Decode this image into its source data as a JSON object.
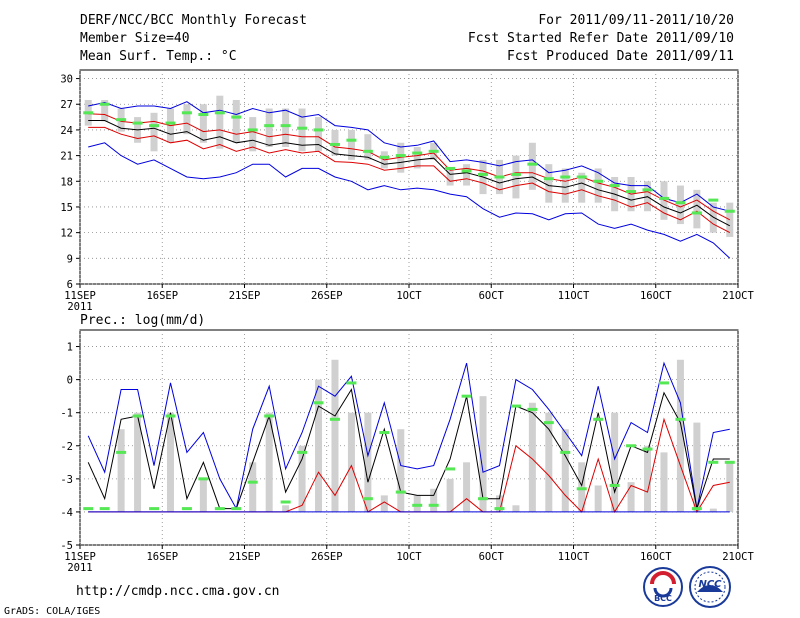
{
  "header": {
    "title": "DERF/NCC/BCC Monthly Forecast",
    "member_size": "Member Size=40",
    "variable": "Mean Surf. Temp.: °C",
    "period": "For 2011/09/11-2011/10/20",
    "started": "Fcst Started Refer Date 2011/09/10",
    "produced": "Fcst Produced Date 2011/09/11"
  },
  "footer": {
    "url": "http://cmdp.ncc.cma.gov.cn",
    "credit": "GrADS: COLA/IGES",
    "logo_bcc": "BCC",
    "logo_ncc": "NCC"
  },
  "colors": {
    "bar": "#d0d0d0",
    "green": "#55e855",
    "blue": "#0000dd",
    "red": "#dd0000",
    "black": "#000000",
    "grid": "#888888"
  },
  "chart_data": [
    {
      "type": "line",
      "title": "Mean Surf. Temp.: °C",
      "ylim": [
        6,
        31
      ],
      "yticks": [
        6,
        9,
        12,
        15,
        18,
        21,
        24,
        27,
        30
      ],
      "x_start": "2011-09-11",
      "x_end": "2011-10-21",
      "xticks": [
        {
          "day": 0,
          "label": "11SEP",
          "sub": "2011"
        },
        {
          "day": 5,
          "label": "16SEP"
        },
        {
          "day": 10,
          "label": "21SEP"
        },
        {
          "day": 15,
          "label": "26SEP"
        },
        {
          "day": 20,
          "label": "1OCT"
        },
        {
          "day": 25,
          "label": "6OCT"
        },
        {
          "day": 30,
          "label": "11OCT"
        },
        {
          "day": 35,
          "label": "16OCT"
        },
        {
          "day": 40,
          "label": "21OCT"
        }
      ],
      "bars": {
        "low": [
          24.5,
          25.0,
          23.8,
          22.5,
          21.5,
          22.5,
          23.5,
          22.5,
          21.8,
          22.5,
          21.5,
          22.0,
          22.0,
          21.5,
          21.5,
          21.0,
          20.5,
          20.5,
          19.5,
          19.0,
          19.5,
          20.5,
          17.5,
          17.5,
          16.5,
          16.5,
          16.0,
          17.0,
          15.5,
          15.5,
          15.5,
          15.5,
          14.5,
          14.5,
          14.5,
          13.5,
          13.0,
          12.5,
          12.0,
          11.5
        ],
        "high": [
          27.5,
          27.5,
          26.5,
          25.5,
          26.0,
          26.5,
          27.0,
          27.0,
          28.0,
          27.5,
          25.5,
          26.5,
          26.5,
          26.5,
          25.5,
          24.0,
          24.0,
          23.5,
          21.5,
          22.5,
          22.0,
          22.5,
          19.5,
          20.0,
          20.5,
          20.5,
          21.0,
          22.5,
          20.0,
          19.5,
          19.0,
          19.5,
          18.5,
          18.5,
          18.0,
          18.0,
          17.5,
          17.0,
          15.5,
          15.5
        ]
      },
      "green_marks": [
        26.0,
        27.0,
        25.2,
        24.8,
        24.5,
        24.8,
        26.0,
        25.8,
        26.0,
        25.5,
        24.0,
        24.5,
        24.5,
        24.2,
        24.0,
        22.3,
        22.8,
        21.5,
        20.8,
        21.0,
        21.3,
        21.5,
        19.5,
        19.2,
        18.8,
        18.5,
        18.8,
        20.0,
        18.3,
        18.5,
        18.5,
        18.0,
        17.5,
        16.8,
        17.0,
        16.0,
        15.5,
        14.3,
        15.8,
        14.5
      ],
      "series": [
        {
          "name": "upper (blue)",
          "color": "#0000dd",
          "values": [
            26.8,
            27.2,
            26.5,
            26.8,
            26.8,
            26.5,
            27.3,
            26.0,
            26.3,
            25.8,
            26.5,
            26.0,
            26.3,
            25.5,
            25.8,
            24.5,
            24.3,
            24.0,
            22.5,
            22.0,
            22.2,
            22.7,
            20.3,
            20.5,
            20.2,
            19.8,
            20.3,
            20.5,
            19.0,
            19.3,
            19.8,
            19.0,
            17.8,
            17.5,
            17.5,
            16.0,
            15.5,
            16.5,
            15.0,
            14.5
          ]
        },
        {
          "name": "upper (red)",
          "color": "#dd0000",
          "values": [
            25.9,
            25.8,
            25.0,
            24.8,
            25.0,
            24.5,
            24.8,
            23.8,
            24.0,
            23.5,
            23.8,
            23.2,
            23.5,
            23.2,
            23.2,
            22.0,
            21.8,
            21.5,
            20.5,
            20.8,
            21.0,
            21.3,
            19.3,
            19.5,
            19.2,
            18.5,
            19.0,
            19.0,
            18.3,
            18.0,
            18.5,
            17.8,
            17.3,
            16.5,
            16.8,
            15.8,
            15.0,
            15.8,
            14.5,
            13.5
          ]
        },
        {
          "name": "ensemble mean (black)",
          "color": "#000000",
          "values": [
            25.1,
            25.1,
            24.2,
            24.0,
            24.2,
            23.5,
            23.8,
            22.8,
            23.2,
            22.5,
            22.8,
            22.2,
            22.5,
            22.2,
            22.3,
            21.2,
            21.0,
            20.8,
            20.0,
            20.2,
            20.5,
            20.7,
            18.8,
            19.0,
            18.5,
            17.8,
            18.3,
            18.5,
            17.5,
            17.3,
            17.8,
            17.0,
            16.5,
            15.8,
            16.2,
            15.0,
            14.3,
            15.2,
            13.8,
            12.8
          ]
        },
        {
          "name": "lower (red)",
          "color": "#dd0000",
          "values": [
            24.3,
            24.3,
            23.5,
            23.0,
            23.3,
            22.5,
            22.8,
            21.8,
            22.3,
            21.5,
            22.0,
            21.3,
            21.7,
            21.3,
            21.5,
            20.3,
            20.2,
            20.0,
            19.3,
            19.5,
            19.8,
            19.8,
            18.0,
            18.3,
            17.8,
            17.0,
            17.5,
            17.8,
            16.8,
            16.5,
            17.0,
            16.3,
            15.8,
            15.0,
            15.5,
            14.3,
            13.5,
            14.5,
            13.0,
            12.0
          ]
        },
        {
          "name": "lower (blue)",
          "color": "#0000dd",
          "values": [
            22.0,
            22.5,
            21.0,
            20.0,
            20.5,
            19.5,
            18.5,
            18.3,
            18.5,
            19.0,
            20.0,
            20.0,
            18.5,
            19.5,
            19.5,
            18.5,
            18.0,
            17.0,
            17.5,
            17.0,
            17.2,
            17.0,
            16.5,
            16.2,
            14.8,
            13.8,
            14.3,
            14.2,
            13.5,
            14.2,
            14.3,
            13.0,
            12.5,
            13.0,
            12.3,
            11.8,
            11.0,
            11.8,
            10.8,
            9.0
          ]
        }
      ]
    },
    {
      "type": "line",
      "title": "Prec.: log(mm/d)",
      "ylim": [
        -5,
        1.5
      ],
      "yticks": [
        -5,
        -4,
        -3,
        -2,
        -1,
        0,
        1
      ],
      "x_start": "2011-09-11",
      "x_end": "2011-10-21",
      "xticks": [
        {
          "day": 0,
          "label": "11SEP",
          "sub": "2011"
        },
        {
          "day": 5,
          "label": "16SEP"
        },
        {
          "day": 10,
          "label": "21SEP"
        },
        {
          "day": 15,
          "label": "26SEP"
        },
        {
          "day": 20,
          "label": "1OCT"
        },
        {
          "day": 25,
          "label": "6OCT"
        },
        {
          "day": 30,
          "label": "11OCT"
        },
        {
          "day": 35,
          "label": "16OCT"
        },
        {
          "day": 40,
          "label": "21OCT"
        }
      ],
      "bar_base": -4,
      "bars": [
        -4,
        -4,
        -1.5,
        -1,
        -4,
        -1,
        -4,
        -3,
        -4,
        -4,
        -2.5,
        -1,
        -3.8,
        -2,
        0,
        0.6,
        -1,
        -1,
        -3.5,
        -1.5,
        -3.5,
        -3.3,
        -3,
        -2.5,
        -0.5,
        -3.5,
        -3.8,
        -0.7,
        -1,
        -1.5,
        -2.5,
        -3.2,
        -1,
        -3.1,
        -2,
        -2.2,
        0.6,
        -1.3,
        -3.9,
        -2.5
      ],
      "green_marks": [
        -3.9,
        -3.9,
        -2.2,
        -1.1,
        -3.9,
        -1.1,
        -3.9,
        -3.0,
        -3.9,
        -3.9,
        -3.1,
        -1.1,
        -3.7,
        -2.2,
        -0.7,
        -1.2,
        -0.1,
        -3.6,
        -1.6,
        -3.4,
        -3.8,
        -3.8,
        -2.7,
        -0.5,
        -3.6,
        -3.9,
        -0.8,
        -0.9,
        -1.3,
        -2.2,
        -3.3,
        -1.2,
        -3.2,
        -2.0,
        -2.1,
        -0.1,
        -1.2,
        -3.9,
        -2.5,
        -2.5
      ],
      "series": [
        {
          "name": "upper (blue)",
          "color": "#0000dd",
          "values": [
            -1.7,
            -2.8,
            -0.3,
            -0.3,
            -2.6,
            -0.1,
            -2.2,
            -1.6,
            -3.0,
            -3.9,
            -1.5,
            -0.2,
            -2.7,
            -1.6,
            -0.2,
            -0.5,
            0.1,
            -2.3,
            -0.7,
            -2.6,
            -2.7,
            -2.6,
            -1.2,
            0.5,
            -2.8,
            -2.6,
            0.0,
            -0.3,
            -0.9,
            -1.6,
            -2.3,
            -0.2,
            -2.4,
            -1.3,
            -1.6,
            0.5,
            -0.7,
            -3.9,
            -1.6,
            -1.5
          ]
        },
        {
          "name": "ensemble mean (black)",
          "color": "#000000",
          "values": [
            -2.5,
            -3.6,
            -1.2,
            -1.1,
            -3.3,
            -1.0,
            -3.6,
            -2.5,
            -3.9,
            -3.9,
            -2.5,
            -1.1,
            -3.4,
            -2.4,
            -0.8,
            -1.1,
            -0.3,
            -3.1,
            -1.5,
            -3.4,
            -3.5,
            -3.5,
            -2.4,
            -0.5,
            -3.6,
            -3.6,
            -0.8,
            -1.0,
            -1.5,
            -2.3,
            -3.2,
            -1.0,
            -3.4,
            -2.0,
            -2.2,
            -0.4,
            -1.3,
            -3.9,
            -2.4,
            -2.4
          ]
        },
        {
          "name": "lower (red)",
          "color": "#dd0000",
          "values": [
            -4,
            -4,
            -4,
            -4,
            -4,
            -4,
            -4,
            -4,
            -4,
            -4,
            -4,
            -4,
            -4,
            -3.8,
            -2.8,
            -3.5,
            -2.6,
            -4,
            -3.7,
            -4,
            -4,
            -4,
            -4,
            -3.6,
            -4,
            -4,
            -2.0,
            -2.4,
            -2.9,
            -3.5,
            -4,
            -2.4,
            -4,
            -3.2,
            -3.4,
            -1.2,
            -2.6,
            -4,
            -3.2,
            -3.1
          ]
        },
        {
          "name": "lower (blue)",
          "color": "#0000dd",
          "values": [
            -4,
            -4,
            -4,
            -4,
            -4,
            -4,
            -4,
            -4,
            -4,
            -4,
            -4,
            -4,
            -4,
            -4,
            -4,
            -4,
            -4,
            -4,
            -4,
            -4,
            -4,
            -4,
            -4,
            -4,
            -4,
            -4,
            -4,
            -4,
            -4,
            -4,
            -4,
            -4,
            -4,
            -4,
            -4,
            -4,
            -4,
            -4,
            -4,
            -4
          ]
        }
      ]
    }
  ]
}
